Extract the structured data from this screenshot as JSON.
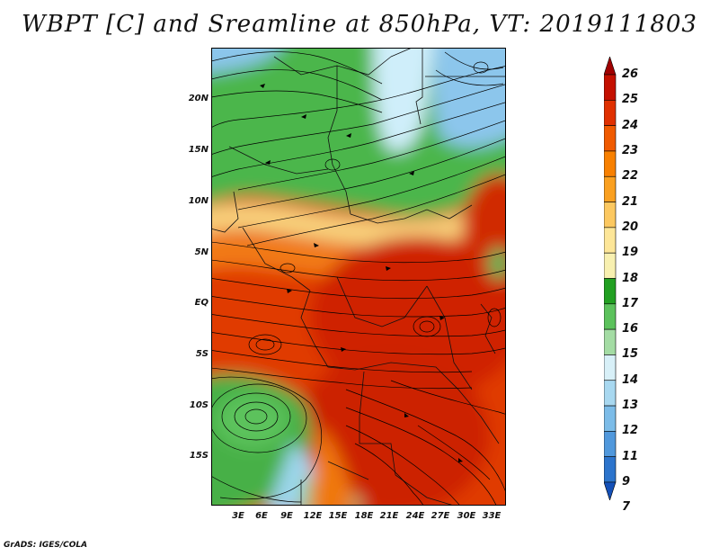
{
  "title": "WBPT [C] and Sreamline at 850hPa, VT: 2019111803",
  "footer": "GrADS: IGES/COLA",
  "map": {
    "variable": "WBPT",
    "units": "C",
    "level": "850hPa",
    "valid_time": "2019111803",
    "lat_labels": [
      "20N",
      "15N",
      "10N",
      "5N",
      "EQ",
      "5S",
      "10S",
      "15S"
    ],
    "lon_labels": [
      "3E",
      "6E",
      "9E",
      "12E",
      "15E",
      "18E",
      "21E",
      "24E",
      "27E",
      "30E",
      "33E"
    ]
  },
  "colorbar": {
    "labels": [
      "26",
      "25",
      "24",
      "23",
      "22",
      "21",
      "20",
      "19",
      "18",
      "17",
      "16",
      "15",
      "14",
      "13",
      "12",
      "11",
      "9",
      "7"
    ],
    "colors": [
      "#a00000",
      "#c41000",
      "#e03000",
      "#f05a00",
      "#f88000",
      "#faa020",
      "#fcc860",
      "#fde698",
      "#f8f0b0",
      "#22a022",
      "#5cc25c",
      "#a4dca4",
      "#d8f0f8",
      "#a8d8f0",
      "#7cbce8",
      "#5098dc",
      "#2c74cc",
      "#1450b8"
    ]
  }
}
